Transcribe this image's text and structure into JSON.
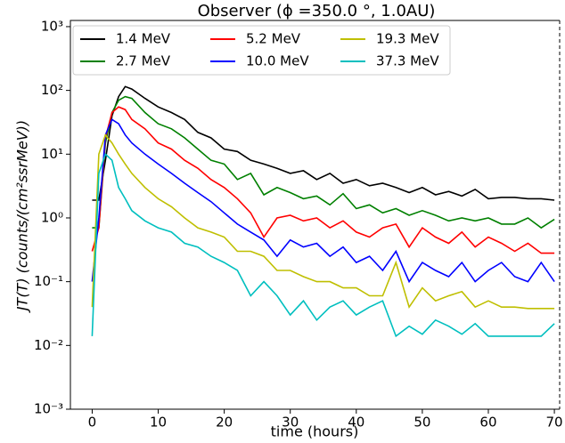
{
  "chart_data": {
    "type": "line",
    "title": "Observer (ϕ =350.0 °, 1.0AU)",
    "x_label": "time (hours)",
    "y_label": "JT(T) (counts/(cm²ssrMeV))",
    "log_y": true,
    "legend": "upper left",
    "xlim": [
      -3.3,
      70.8
    ],
    "ylim": [
      0.001,
      1250
    ],
    "xticks": [
      0,
      10,
      20,
      30,
      40,
      50,
      60,
      70
    ],
    "yticks": [
      {
        "value": 0.001,
        "label": "10⁻³"
      },
      {
        "value": 0.01,
        "label": "10⁻²"
      },
      {
        "value": 0.1,
        "label": "10⁻¹"
      },
      {
        "value": 1,
        "label": "10⁰"
      },
      {
        "value": 10,
        "label": "10¹"
      },
      {
        "value": 100,
        "label": "10²"
      },
      {
        "value": 1000,
        "label": "10³"
      }
    ],
    "x": [
      0,
      1,
      2,
      3,
      4,
      5,
      6,
      8,
      10,
      12,
      14,
      16,
      18,
      20,
      22,
      24,
      26,
      28,
      30,
      32,
      34,
      36,
      38,
      40,
      42,
      44,
      46,
      48,
      50,
      52,
      54,
      56,
      58,
      60,
      62,
      64,
      66,
      68,
      70
    ],
    "series": [
      {
        "name": "1.4 MeV",
        "color": "#000000",
        "values": [
          1.9,
          1.9,
          8,
          40,
          80,
          115,
          105,
          75,
          55,
          45,
          35,
          22,
          18,
          12,
          11,
          8,
          7,
          6,
          5,
          5.5,
          4,
          5,
          3.5,
          4,
          3.2,
          3.5,
          3,
          2.5,
          3,
          2.3,
          2.6,
          2.2,
          2.8,
          2,
          2.1,
          2.1,
          2,
          2,
          1.9
        ]
      },
      {
        "name": "2.7 MeV",
        "color": "#008000",
        "values": [
          0.7,
          0.7,
          15,
          45,
          70,
          80,
          75,
          45,
          30,
          25,
          18,
          12,
          8,
          7,
          4,
          5,
          2.3,
          3,
          2.5,
          2,
          2.2,
          1.6,
          2.4,
          1.4,
          1.6,
          1.2,
          1.4,
          1.1,
          1.3,
          1.1,
          0.9,
          1,
          0.9,
          1,
          0.8,
          0.8,
          1,
          0.7,
          0.95
        ]
      },
      {
        "name": "5.2 MeV",
        "color": "#ff0000",
        "values": [
          0.3,
          0.7,
          18,
          45,
          55,
          50,
          35,
          25,
          15,
          12,
          8,
          6,
          4,
          3,
          2,
          1.2,
          0.5,
          1,
          1.1,
          0.9,
          1,
          0.7,
          0.9,
          0.6,
          0.5,
          0.7,
          0.8,
          0.35,
          0.7,
          0.5,
          0.4,
          0.6,
          0.35,
          0.5,
          0.4,
          0.3,
          0.4,
          0.28,
          0.28
        ]
      },
      {
        "name": "10.0 MeV",
        "color": "#0000ff",
        "values": [
          0.1,
          1,
          20,
          35,
          30,
          20,
          15,
          10,
          7,
          5,
          3.5,
          2.5,
          1.8,
          1.2,
          0.8,
          0.6,
          0.45,
          0.25,
          0.45,
          0.35,
          0.4,
          0.25,
          0.35,
          0.2,
          0.25,
          0.15,
          0.3,
          0.1,
          0.2,
          0.15,
          0.12,
          0.2,
          0.1,
          0.15,
          0.2,
          0.12,
          0.1,
          0.2,
          0.1
        ]
      },
      {
        "name": "19.3 MeV",
        "color": "#bfbf00",
        "values": [
          0.04,
          10,
          20,
          15,
          10,
          7,
          5,
          3,
          2,
          1.5,
          1,
          0.7,
          0.6,
          0.5,
          0.3,
          0.3,
          0.25,
          0.15,
          0.15,
          0.12,
          0.1,
          0.1,
          0.08,
          0.08,
          0.06,
          0.06,
          0.2,
          0.04,
          0.08,
          0.05,
          0.06,
          0.07,
          0.04,
          0.05,
          0.04,
          0.04,
          0.038,
          0.038,
          0.038
        ]
      },
      {
        "name": "37.3 MeV",
        "color": "#00bfbf",
        "values": [
          0.014,
          5,
          10,
          8,
          3,
          2,
          1.3,
          0.9,
          0.7,
          0.6,
          0.4,
          0.35,
          0.25,
          0.2,
          0.15,
          0.06,
          0.1,
          0.06,
          0.03,
          0.05,
          0.025,
          0.04,
          0.05,
          0.03,
          0.04,
          0.05,
          0.014,
          0.02,
          0.015,
          0.025,
          0.02,
          0.015,
          0.022,
          0.014,
          0.014,
          0.014,
          0.014,
          0.014,
          0.022
        ]
      }
    ]
  }
}
